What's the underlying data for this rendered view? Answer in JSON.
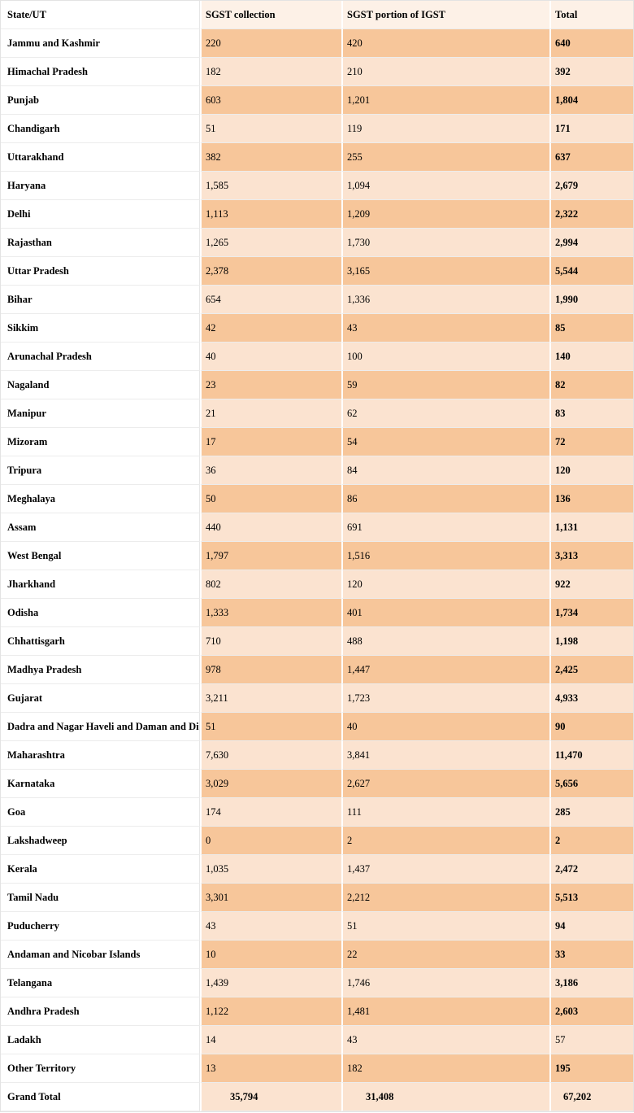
{
  "colors": {
    "row_dark": "#F7C69A",
    "row_light": "#FBE3D0",
    "header_bg": "#FDF1E7",
    "grid_line": "#ECECEC",
    "outer_border": "#E3E3E3",
    "text": "#000000"
  },
  "table": {
    "columns": [
      "State/UT",
      "SGST collection",
      "SGST portion of IGST",
      "Total"
    ],
    "rows": [
      {
        "state": "Jammu and Kashmir",
        "sgst": "220",
        "igst": "420",
        "total": "640"
      },
      {
        "state": "Himachal Pradesh",
        "sgst": "182",
        "igst": "210",
        "total": "392"
      },
      {
        "state": "Punjab",
        "sgst": "603",
        "igst": "1,201",
        "total": "1,804"
      },
      {
        "state": "Chandigarh",
        "sgst": "51",
        "igst": "119",
        "total": "171"
      },
      {
        "state": "Uttarakhand",
        "sgst": "382",
        "igst": "255",
        "total": "637"
      },
      {
        "state": "Haryana",
        "sgst": "1,585",
        "igst": "1,094",
        "total": "2,679"
      },
      {
        "state": "Delhi",
        "sgst": "1,113",
        "igst": "1,209",
        "total": "2,322"
      },
      {
        "state": "Rajasthan",
        "sgst": "1,265",
        "igst": "1,730",
        "total": "2,994"
      },
      {
        "state": "Uttar Pradesh",
        "sgst": "2,378",
        "igst": "3,165",
        "total": "5,544"
      },
      {
        "state": "Bihar",
        "sgst": "654",
        "igst": "1,336",
        "total": "1,990"
      },
      {
        "state": "Sikkim",
        "sgst": "42",
        "igst": "43",
        "total": "85"
      },
      {
        "state": "Arunachal Pradesh",
        "sgst": "40",
        "igst": "100",
        "total": "140"
      },
      {
        "state": "Nagaland",
        "sgst": "23",
        "igst": "59",
        "total": "82"
      },
      {
        "state": "Manipur",
        "sgst": "21",
        "igst": "62",
        "total": "83"
      },
      {
        "state": "Mizoram",
        "sgst": "17",
        "igst": "54",
        "total": "72"
      },
      {
        "state": "Tripura",
        "sgst": "36",
        "igst": "84",
        "total": "120"
      },
      {
        "state": "Meghalaya",
        "sgst": "50",
        "igst": "86",
        "total": "136"
      },
      {
        "state": "Assam",
        "sgst": "440",
        "igst": "691",
        "total": "1,131"
      },
      {
        "state": "West Bengal",
        "sgst": "1,797",
        "igst": "1,516",
        "total": "3,313"
      },
      {
        "state": "Jharkhand",
        "sgst": "802",
        "igst": "120",
        "total": "922"
      },
      {
        "state": "Odisha",
        "sgst": "1,333",
        "igst": "401",
        "total": "1,734"
      },
      {
        "state": "Chhattisgarh",
        "sgst": "710",
        "igst": "488",
        "total": "1,198"
      },
      {
        "state": "Madhya Pradesh",
        "sgst": "978",
        "igst": "1,447",
        "total": "2,425"
      },
      {
        "state": "Gujarat",
        "sgst": "3,211",
        "igst": "1,723",
        "total": "4,933"
      },
      {
        "state": "Dadra and Nagar Haveli and Daman and Diu",
        "sgst": "51",
        "igst": "40",
        "total": "90"
      },
      {
        "state": "Maharashtra",
        "sgst": "7,630",
        "igst": "3,841",
        "total": "11,470"
      },
      {
        "state": "Karnataka",
        "sgst": "3,029",
        "igst": "2,627",
        "total": "5,656"
      },
      {
        "state": "Goa",
        "sgst": "174",
        "igst": "111",
        "total": "285"
      },
      {
        "state": "Lakshadweep",
        "sgst": "0",
        "igst": "2",
        "total": "2"
      },
      {
        "state": "Kerala",
        "sgst": "1,035",
        "igst": "1,437",
        "total": "2,472"
      },
      {
        "state": "Tamil Nadu",
        "sgst": "3,301",
        "igst": "2,212",
        "total": "5,513"
      },
      {
        "state": "Puducherry",
        "sgst": "43",
        "igst": "51",
        "total": "94"
      },
      {
        "state": "Andaman and Nicobar Islands",
        "sgst": "10",
        "igst": "22",
        "total": "33"
      },
      {
        "state": "Telangana",
        "sgst": "1,439",
        "igst": "1,746",
        "total": "3,186"
      },
      {
        "state": "Andhra Pradesh",
        "sgst": "1,122",
        "igst": "1,481",
        "total": "2,603"
      },
      {
        "state": "Ladakh",
        "sgst": "14",
        "igst": "43",
        "total": "57",
        "total_bold": false
      },
      {
        "state": "Other Territory",
        "sgst": "13",
        "igst": "182",
        "total": "195"
      }
    ],
    "grand_total": {
      "state": "Grand Total",
      "sgst": "35,794",
      "igst": "31,408",
      "total": "67,202"
    }
  }
}
